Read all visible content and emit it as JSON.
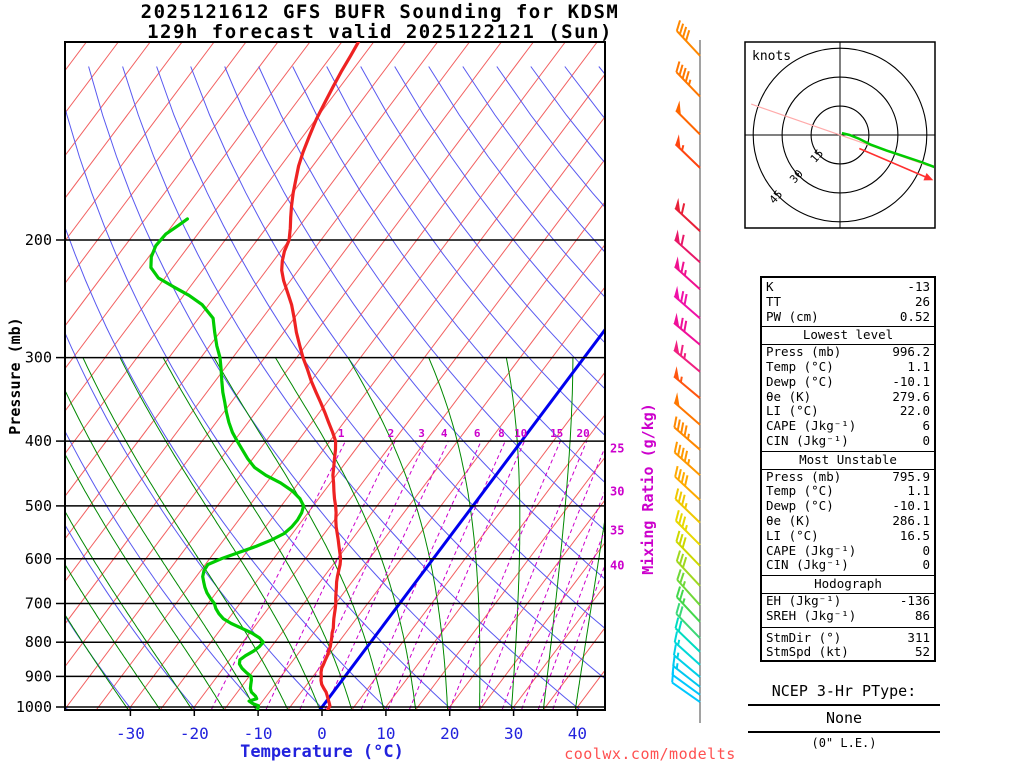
{
  "title_line1": "2025121612 GFS BUFR Sounding for KDSM",
  "title_line2": "129h forecast valid 2025122121 (Sun)",
  "watermark": "coolwx.com/modelts",
  "axes": {
    "pressure_label": "Pressure (mb)",
    "temperature_label": "Temperature (°C)",
    "mixing_ratio_label": "Mixing Ratio (g/kg)",
    "pressure_ticks": [
      200,
      300,
      400,
      500,
      600,
      700,
      800,
      900,
      1000
    ],
    "temperature_ticks": [
      -30,
      -20,
      -10,
      0,
      10,
      20,
      30,
      40
    ]
  },
  "colors": {
    "temperature": "#ee2222",
    "dewpoint": "#00cc00",
    "isotherm": "#f26060",
    "freezing_isotherm": "#0000ee",
    "dry_adiabat": "#5858f0",
    "moist_adiabat": "#008800",
    "mixing_ratio": "#cc00cc",
    "pressure_line": "#000000",
    "temp_axis": "#2222dd",
    "watermark": "#ff5050"
  },
  "chart_data": {
    "type": "line",
    "projection": "skew-t-log-p",
    "pressure_range_mb": [
      100,
      1010
    ],
    "isotherms_c": {
      "min": -120,
      "max": 45,
      "step": 5
    },
    "dry_adiabats_k": {
      "min": 233,
      "max": 463,
      "step": 10
    },
    "moist_adiabats_c": {
      "min": -30,
      "max": 40,
      "step": 5
    },
    "mixing_ratio_lines_g_kg": [
      1,
      2,
      3,
      4,
      6,
      8,
      10,
      15,
      20,
      25,
      30,
      35,
      40
    ],
    "series": [
      {
        "name": "Temperature",
        "color_key": "temperature",
        "points_p_t": [
          [
            1008,
            1.2
          ],
          [
            996,
            1.1
          ],
          [
            985,
            0.6
          ],
          [
            975,
            0.1
          ],
          [
            962,
            -0.5
          ],
          [
            950,
            -1.1
          ],
          [
            938,
            -1.9
          ],
          [
            925,
            -2.7
          ],
          [
            912,
            -3.3
          ],
          [
            900,
            -3.7
          ],
          [
            888,
            -4.2
          ],
          [
            875,
            -4.6
          ],
          [
            862,
            -4.8
          ],
          [
            850,
            -5.0
          ],
          [
            838,
            -5.2
          ],
          [
            825,
            -5.5
          ],
          [
            812,
            -5.8
          ],
          [
            800,
            -6.2
          ],
          [
            788,
            -6.6
          ],
          [
            775,
            -7.1
          ],
          [
            762,
            -7.5
          ],
          [
            750,
            -8.0
          ],
          [
            738,
            -8.5
          ],
          [
            725,
            -9.0
          ],
          [
            712,
            -9.5
          ],
          [
            700,
            -10.0
          ],
          [
            688,
            -10.6
          ],
          [
            675,
            -11.2
          ],
          [
            662,
            -11.8
          ],
          [
            650,
            -12.4
          ],
          [
            638,
            -12.9
          ],
          [
            625,
            -13.4
          ],
          [
            612,
            -13.9
          ],
          [
            600,
            -14.5
          ],
          [
            588,
            -15.3
          ],
          [
            575,
            -16.2
          ],
          [
            562,
            -17.1
          ],
          [
            550,
            -18.0
          ],
          [
            538,
            -18.9
          ],
          [
            525,
            -19.8
          ],
          [
            512,
            -20.6
          ],
          [
            500,
            -21.5
          ],
          [
            488,
            -22.5
          ],
          [
            475,
            -23.5
          ],
          [
            462,
            -24.5
          ],
          [
            450,
            -25.5
          ],
          [
            438,
            -26.3
          ],
          [
            425,
            -27.2
          ],
          [
            412,
            -28.1
          ],
          [
            400,
            -29.1
          ],
          [
            388,
            -30.6
          ],
          [
            375,
            -32.4
          ],
          [
            362,
            -34.2
          ],
          [
            350,
            -36.0
          ],
          [
            338,
            -37.9
          ],
          [
            325,
            -40.0
          ],
          [
            312,
            -42.0
          ],
          [
            300,
            -44.0
          ],
          [
            288,
            -45.9
          ],
          [
            275,
            -48.0
          ],
          [
            262,
            -50.0
          ],
          [
            250,
            -52.0
          ],
          [
            240,
            -54.0
          ],
          [
            230,
            -56.1
          ],
          [
            222,
            -57.6
          ],
          [
            215,
            -58.6
          ],
          [
            208,
            -59.4
          ],
          [
            200,
            -60.0
          ],
          [
            192,
            -61.2
          ],
          [
            185,
            -62.4
          ],
          [
            178,
            -63.6
          ],
          [
            170,
            -64.9
          ],
          [
            162,
            -66.1
          ],
          [
            155,
            -67.2
          ],
          [
            148,
            -68.1
          ],
          [
            140,
            -69.0
          ],
          [
            132,
            -69.9
          ],
          [
            125,
            -70.5
          ],
          [
            118,
            -71.1
          ],
          [
            112,
            -71.6
          ],
          [
            106,
            -72.0
          ],
          [
            101,
            -72.4
          ]
        ]
      },
      {
        "name": "Dewpoint",
        "color_key": "dewpoint",
        "points_p_t": [
          [
            1008,
            -9.8
          ],
          [
            996,
            -10.1
          ],
          [
            988,
            -11.3
          ],
          [
            980,
            -12.1
          ],
          [
            972,
            -11.2
          ],
          [
            963,
            -11.7
          ],
          [
            950,
            -12.8
          ],
          [
            938,
            -13.4
          ],
          [
            925,
            -13.8
          ],
          [
            912,
            -14.2
          ],
          [
            900,
            -14.7
          ],
          [
            888,
            -15.9
          ],
          [
            875,
            -17.1
          ],
          [
            862,
            -18.0
          ],
          [
            850,
            -18.4
          ],
          [
            838,
            -18.0
          ],
          [
            825,
            -17.3
          ],
          [
            812,
            -16.9
          ],
          [
            800,
            -16.8
          ],
          [
            788,
            -17.9
          ],
          [
            775,
            -19.7
          ],
          [
            762,
            -21.9
          ],
          [
            750,
            -24.0
          ],
          [
            738,
            -25.8
          ],
          [
            725,
            -27.1
          ],
          [
            712,
            -28.2
          ],
          [
            700,
            -29.0
          ],
          [
            688,
            -30.2
          ],
          [
            675,
            -31.4
          ],
          [
            662,
            -32.4
          ],
          [
            650,
            -33.2
          ],
          [
            638,
            -34.0
          ],
          [
            625,
            -34.5
          ],
          [
            612,
            -34.6
          ],
          [
            600,
            -33.2
          ],
          [
            588,
            -31.3
          ],
          [
            575,
            -29.2
          ],
          [
            562,
            -27.5
          ],
          [
            550,
            -26.3
          ],
          [
            538,
            -25.9
          ],
          [
            525,
            -25.8
          ],
          [
            512,
            -26.0
          ],
          [
            500,
            -26.5
          ],
          [
            488,
            -27.9
          ],
          [
            475,
            -30.0
          ],
          [
            462,
            -32.8
          ],
          [
            450,
            -36.0
          ],
          [
            438,
            -38.7
          ],
          [
            425,
            -40.8
          ],
          [
            412,
            -42.7
          ],
          [
            400,
            -44.5
          ],
          [
            388,
            -46.3
          ],
          [
            375,
            -48.0
          ],
          [
            362,
            -49.6
          ],
          [
            350,
            -51.0
          ],
          [
            338,
            -52.5
          ],
          [
            325,
            -54.0
          ],
          [
            312,
            -55.5
          ],
          [
            300,
            -57.0
          ],
          [
            288,
            -58.9
          ],
          [
            275,
            -60.8
          ],
          [
            262,
            -62.7
          ],
          [
            250,
            -66.0
          ],
          [
            242,
            -69.2
          ],
          [
            235,
            -72.6
          ],
          [
            228,
            -76.0
          ],
          [
            220,
            -78.4
          ],
          [
            212,
            -79.6
          ],
          [
            204,
            -80.2
          ],
          [
            196,
            -80.0
          ],
          [
            190,
            -79.0
          ],
          [
            186,
            -78.4
          ]
        ]
      }
    ],
    "wind_barbs": [
      {
        "p": 983,
        "spd_kt": 10,
        "dir_deg": 305,
        "color": "#00c8ff"
      },
      {
        "p": 959,
        "spd_kt": 10,
        "dir_deg": 306,
        "color": "#00c8ff"
      },
      {
        "p": 933,
        "spd_kt": 15,
        "dir_deg": 308,
        "color": "#00c8f0"
      },
      {
        "p": 902,
        "spd_kt": 15,
        "dir_deg": 310,
        "color": "#00d0e8"
      },
      {
        "p": 865,
        "spd_kt": 15,
        "dir_deg": 312,
        "color": "#00d8d8"
      },
      {
        "p": 827,
        "spd_kt": 20,
        "dir_deg": 314,
        "color": "#00dcc0"
      },
      {
        "p": 789,
        "spd_kt": 20,
        "dir_deg": 316,
        "color": "#3cd878"
      },
      {
        "p": 746,
        "spd_kt": 25,
        "dir_deg": 317,
        "color": "#44d84c"
      },
      {
        "p": 704,
        "spd_kt": 25,
        "dir_deg": 318,
        "color": "#70d838"
      },
      {
        "p": 659,
        "spd_kt": 30,
        "dir_deg": 317,
        "color": "#a0d820"
      },
      {
        "p": 615,
        "spd_kt": 30,
        "dir_deg": 316,
        "color": "#ccd800"
      },
      {
        "p": 572,
        "spd_kt": 35,
        "dir_deg": 315,
        "color": "#e8d800"
      },
      {
        "p": 530,
        "spd_kt": 35,
        "dir_deg": 314,
        "color": "#f0c800"
      },
      {
        "p": 490,
        "spd_kt": 40,
        "dir_deg": 313,
        "color": "#ffaa00"
      },
      {
        "p": 450,
        "spd_kt": 45,
        "dir_deg": 312,
        "color": "#ff9900"
      },
      {
        "p": 412,
        "spd_kt": 45,
        "dir_deg": 311,
        "color": "#ff8800"
      },
      {
        "p": 378,
        "spd_kt": 50,
        "dir_deg": 311,
        "color": "#ff7700"
      },
      {
        "p": 345,
        "spd_kt": 55,
        "dir_deg": 310,
        "color": "#ff5510"
      },
      {
        "p": 315,
        "spd_kt": 65,
        "dir_deg": 310,
        "color": "#f02080"
      },
      {
        "p": 287,
        "spd_kt": 70,
        "dir_deg": 310,
        "color": "#f01099"
      },
      {
        "p": 262,
        "spd_kt": 70,
        "dir_deg": 311,
        "color": "#f010a8"
      },
      {
        "p": 237,
        "spd_kt": 65,
        "dir_deg": 312,
        "color": "#f01090"
      },
      {
        "p": 216,
        "spd_kt": 60,
        "dir_deg": 312,
        "color": "#e81868"
      },
      {
        "p": 194,
        "spd_kt": 60,
        "dir_deg": 313,
        "color": "#e82038"
      },
      {
        "p": 156,
        "spd_kt": 55,
        "dir_deg": 314,
        "color": "#ff4410"
      },
      {
        "p": 139,
        "spd_kt": 50,
        "dir_deg": 315,
        "color": "#ff6600"
      },
      {
        "p": 122,
        "spd_kt": 45,
        "dir_deg": 316,
        "color": "#ff7700"
      },
      {
        "p": 106,
        "spd_kt": 40,
        "dir_deg": 317,
        "color": "#ff8800"
      }
    ]
  },
  "hodograph": {
    "unit_label": "knots",
    "ring_values_kt": [
      15,
      30,
      45
    ],
    "trace_uv_kt": [
      [
        1,
        1
      ],
      [
        5,
        0
      ],
      [
        10,
        -2
      ],
      [
        16,
        -5
      ],
      [
        24,
        -8
      ],
      [
        33,
        -11
      ],
      [
        42,
        -14
      ],
      [
        50,
        -17
      ]
    ],
    "storm_motion_arrow_uv_kt": [
      [
        10,
        -7
      ],
      [
        45,
        -22
      ]
    ],
    "storm_direction_line_uv_kt": [
      [
        -46,
        16
      ],
      [
        46,
        -16
      ]
    ],
    "trace_color": "#00cc00",
    "arrow_color": "#ff3030",
    "line_color": "#ffaaaa"
  },
  "indices": {
    "top": [
      {
        "label": "K",
        "value": "-13"
      },
      {
        "label": "TT",
        "value": "26"
      },
      {
        "label": "PW (cm)",
        "value": "0.52"
      }
    ],
    "sections": [
      {
        "header": "Lowest level",
        "rows": [
          [
            "Press (mb)",
            "996.2"
          ],
          [
            "Temp (°C)",
            "1.1"
          ],
          [
            "Dewp (°C)",
            "-10.1"
          ],
          [
            "θe (K)",
            "279.6"
          ],
          [
            "LI (°C)",
            "22.0"
          ],
          [
            "CAPE (Jkg⁻¹)",
            "6"
          ],
          [
            "CIN (Jkg⁻¹)",
            "0"
          ]
        ]
      },
      {
        "header": "Most Unstable",
        "rows": [
          [
            "Press (mb)",
            "795.9"
          ],
          [
            "Temp (°C)",
            "1.1"
          ],
          [
            "Dewp (°C)",
            "-10.1"
          ],
          [
            "θe (K)",
            "286.1"
          ],
          [
            "LI (°C)",
            "16.5"
          ],
          [
            "CAPE (Jkg⁻¹)",
            "0"
          ],
          [
            "CIN (Jkg⁻¹)",
            "0"
          ]
        ]
      },
      {
        "header": "Hodograph",
        "divider_before": "StmDir (°)",
        "rows": [
          [
            "EH (Jkg⁻¹)",
            "-136"
          ],
          [
            "SREH (Jkg⁻¹)",
            "86"
          ],
          [
            "StmDir (°)",
            "311"
          ],
          [
            "StmSpd (kt)",
            "52"
          ]
        ]
      }
    ]
  },
  "ptype": {
    "title": "NCEP 3-Hr PType:",
    "value": "None",
    "detail": "(0\" L.E.)"
  }
}
